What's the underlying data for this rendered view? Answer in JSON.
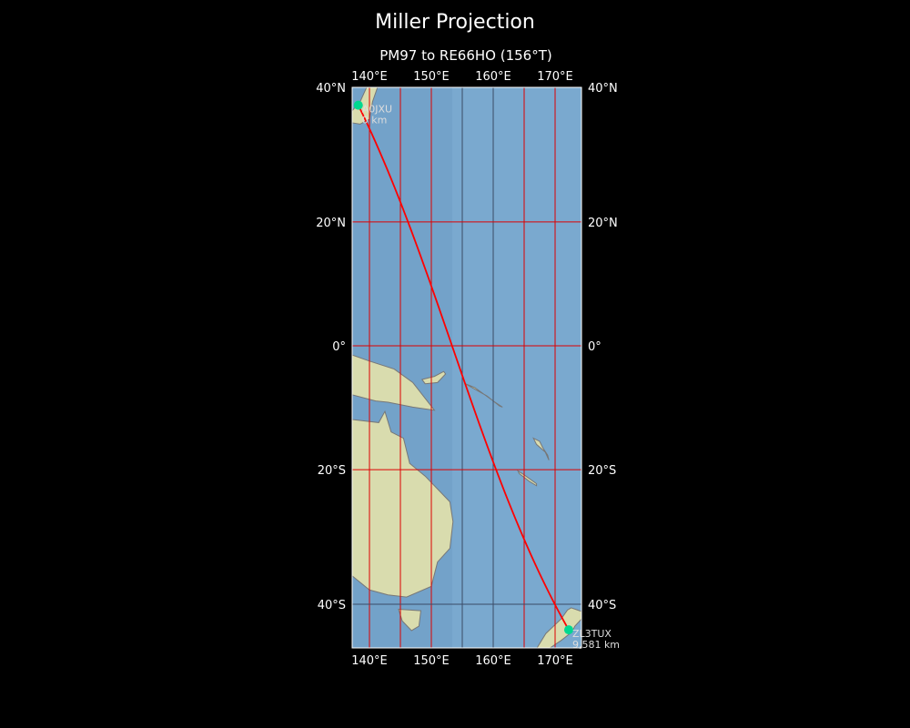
{
  "title": "Miller Projection",
  "subtitle": "PM97 to RE66HO (156°T)",
  "map": {
    "projection": "Miller",
    "extent": {
      "lon": [
        137.2,
        174.3
      ],
      "lat": [
        -45.5,
        40
      ]
    },
    "lon_ticks": [
      {
        "value": 140,
        "label": "140°E"
      },
      {
        "value": 150,
        "label": "150°E"
      },
      {
        "value": 160,
        "label": "160°E"
      },
      {
        "value": 170,
        "label": "170°E"
      }
    ],
    "lat_ticks": [
      {
        "value": 40,
        "label": "40°N"
      },
      {
        "value": 20,
        "label": "20°N"
      },
      {
        "value": 0,
        "label": "0°"
      },
      {
        "value": -20,
        "label": "20°S"
      },
      {
        "value": -40,
        "label": "40°S"
      }
    ],
    "gridlines_lon": [
      {
        "value": 140,
        "color": "#dd0000"
      },
      {
        "value": 145,
        "color": "#dd0000"
      },
      {
        "value": 150,
        "color": "#dd0000"
      },
      {
        "value": 155,
        "color": "#3a4a66"
      },
      {
        "value": 160,
        "color": "#3a4a66"
      },
      {
        "value": 165,
        "color": "#dd0000"
      },
      {
        "value": 170,
        "color": "#dd0000"
      }
    ],
    "gridlines_lat": [
      {
        "value": 20,
        "color": "#dd0000"
      },
      {
        "value": 0,
        "color": "#dd0000"
      },
      {
        "value": -20,
        "color": "#dd0000"
      },
      {
        "value": -40,
        "color": "#3a4a66"
      }
    ],
    "path_color": "#ff0000",
    "marker_color": "#00d890",
    "ocean_color": "#7aa9cf",
    "land_color": "#d9dcae",
    "stations": [
      {
        "call": "A0JXU",
        "distance": "0 km",
        "lon": 138.2,
        "lat": 37.5
      },
      {
        "call": "ZL3TUX",
        "distance": "9,581 km",
        "lon": 172.2,
        "lat": -43.5
      }
    ]
  }
}
